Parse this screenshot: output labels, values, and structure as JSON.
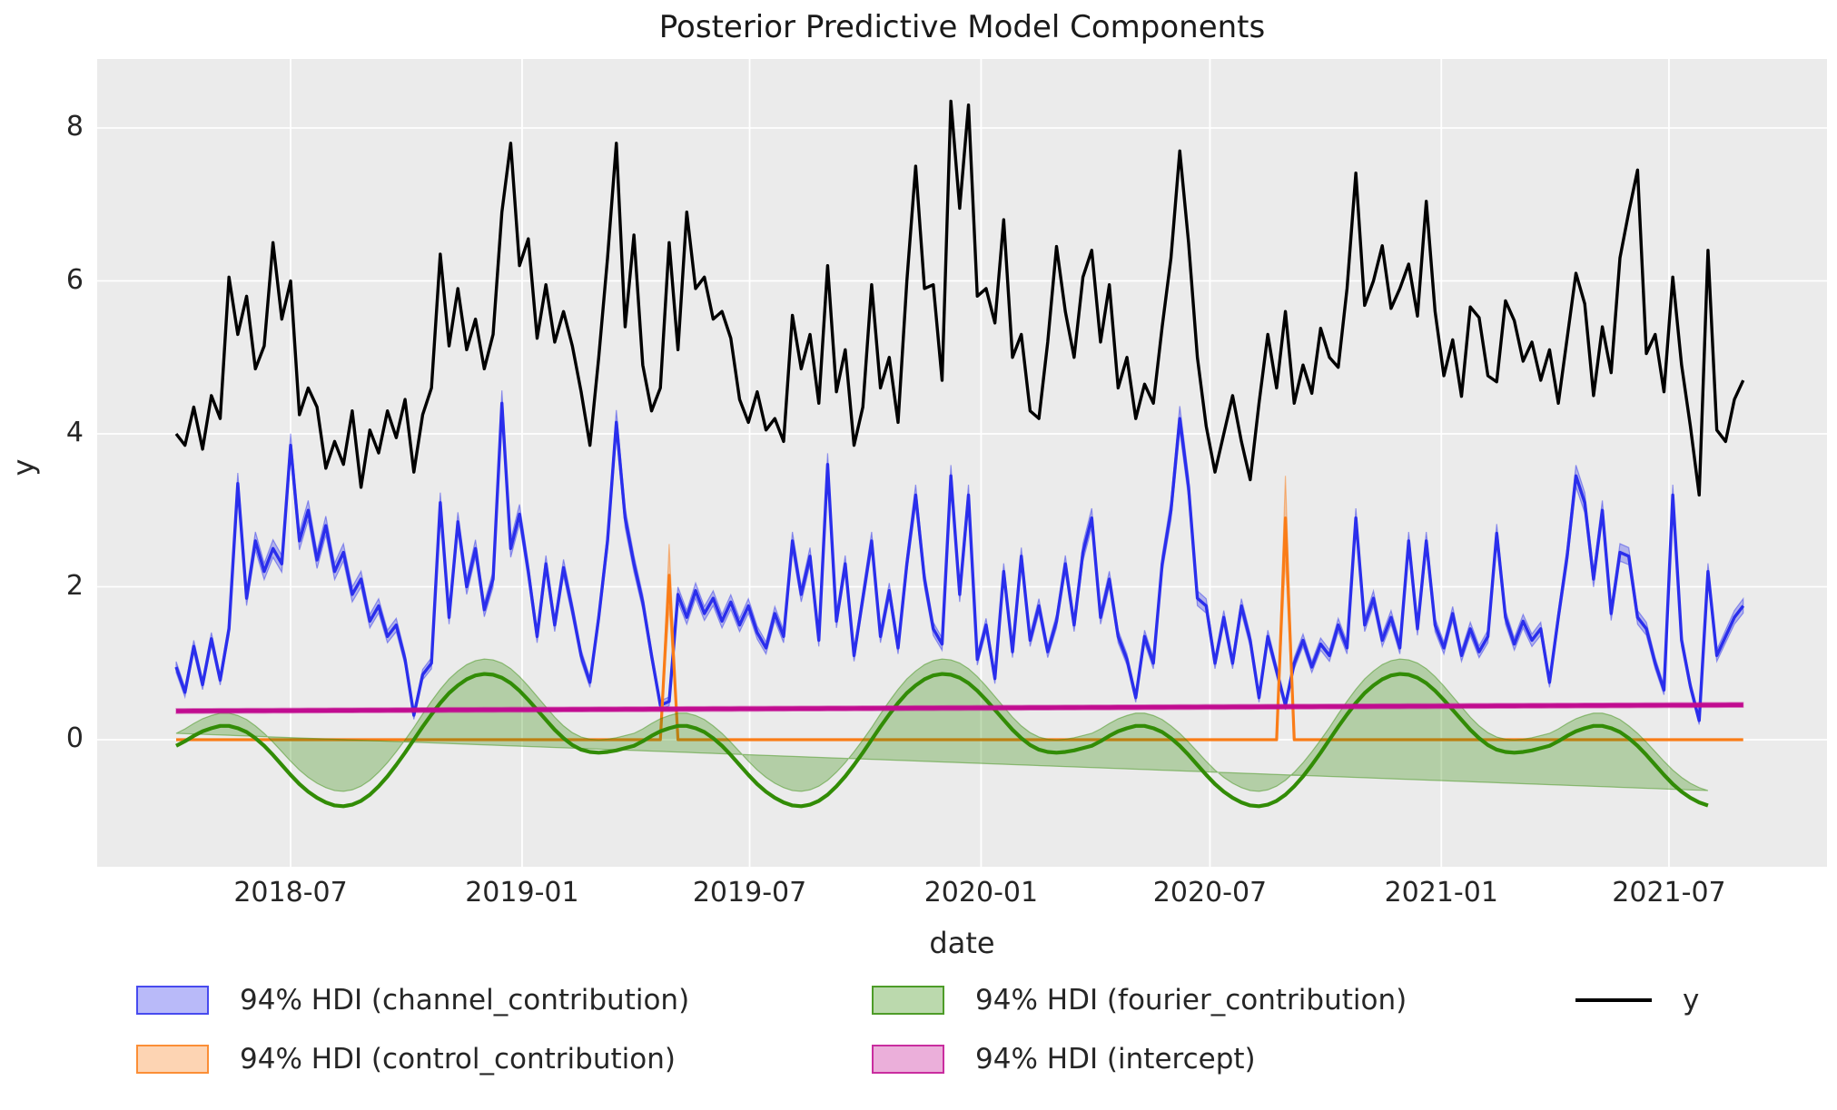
{
  "figure": {
    "title": "Posterior Predictive Model Components",
    "xlabel": "date",
    "ylabel": "y"
  },
  "axes": {
    "x_tick_labels": [
      "2018-07",
      "2019-01",
      "2019-07",
      "2020-01",
      "2020-07",
      "2021-01",
      "2021-07"
    ],
    "x_tick_weeks": [
      13.0,
      39.29,
      65.14,
      91.43,
      117.43,
      143.71,
      169.57
    ],
    "y_tick_labels": [
      "0",
      "2",
      "4",
      "6",
      "8"
    ],
    "y_tick_values": [
      0,
      2,
      4,
      6,
      8
    ],
    "background_color": "#ebebeb",
    "grid_color": "#ffffff"
  },
  "legend": {
    "items": [
      {
        "label": "94% HDI (channel_contribution)",
        "type": "patch",
        "color": "#2a2eec",
        "col": 0,
        "row": 0
      },
      {
        "label": "94% HDI (control_contribution)",
        "type": "patch",
        "color": "#fa7c17",
        "col": 0,
        "row": 1
      },
      {
        "label": "94% HDI (fourier_contribution)",
        "type": "patch",
        "color": "#328c06",
        "col": 1,
        "row": 0
      },
      {
        "label": "94% HDI (intercept)",
        "type": "patch",
        "color": "#c10c90",
        "col": 1,
        "row": 1
      },
      {
        "label": "y",
        "type": "line",
        "color": "#000000",
        "col": 2,
        "row": 0
      }
    ]
  },
  "chart_data": {
    "type": "line",
    "title": "Posterior Predictive Model Components",
    "xlabel": "date",
    "ylabel": "y",
    "x_start_date": "2018-04-01",
    "x_freq_days": 7,
    "n_points": 179,
    "xlim_weeks": [
      -9.0,
      187.5
    ],
    "ylim": [
      -1.66,
      8.9
    ],
    "grid": true,
    "legend_position": "below",
    "series": [
      {
        "name": "y",
        "color": "#000000",
        "kind": "line",
        "line_width": 3.4,
        "values": [
          4.0,
          3.85,
          4.35,
          3.8,
          4.5,
          4.2,
          6.05,
          5.3,
          5.8,
          4.85,
          5.15,
          6.5,
          5.5,
          6.0,
          4.25,
          4.6,
          4.35,
          3.55,
          3.9,
          3.6,
          4.3,
          3.3,
          4.05,
          3.75,
          4.3,
          3.95,
          4.45,
          3.5,
          4.25,
          4.6,
          6.35,
          5.15,
          5.9,
          5.1,
          5.5,
          4.85,
          5.3,
          6.9,
          7.8,
          6.2,
          6.55,
          5.25,
          5.95,
          5.2,
          5.6,
          5.15,
          4.55,
          3.85,
          5.0,
          6.3,
          7.8,
          5.4,
          6.6,
          4.9,
          4.3,
          4.6,
          6.5,
          5.1,
          6.9,
          5.9,
          6.05,
          5.5,
          5.6,
          5.25,
          4.45,
          4.15,
          4.55,
          4.05,
          4.2,
          3.9,
          5.55,
          4.85,
          5.3,
          4.4,
          6.2,
          4.55,
          5.1,
          3.85,
          4.35,
          5.95,
          4.6,
          5.0,
          4.15,
          6.0,
          7.5,
          5.9,
          5.95,
          4.7,
          8.35,
          6.95,
          8.3,
          5.8,
          5.9,
          5.45,
          6.8,
          5.0,
          5.3,
          4.3,
          4.2,
          5.2,
          6.45,
          5.6,
          5.0,
          6.05,
          6.4,
          5.2,
          5.95,
          4.6,
          5.0,
          4.2,
          4.65,
          4.4,
          5.4,
          6.3,
          7.7,
          6.5,
          5.0,
          4.1,
          3.5,
          4.0,
          4.5,
          3.9,
          3.4,
          4.4,
          5.3,
          4.6,
          5.6,
          4.4,
          4.9,
          4.53,
          5.38,
          5.0,
          4.87,
          5.9,
          7.41,
          5.68,
          6.0,
          6.46,
          5.64,
          5.9,
          6.22,
          5.54,
          7.04,
          5.6,
          4.76,
          5.23,
          4.49,
          5.66,
          5.52,
          4.76,
          4.68,
          5.74,
          5.48,
          4.95,
          5.2,
          4.7,
          5.1,
          4.4,
          5.25,
          6.1,
          5.7,
          4.5,
          5.4,
          4.8,
          6.3,
          6.9,
          7.45,
          5.05,
          5.3,
          4.55,
          6.05,
          4.9,
          4.1,
          3.2,
          6.4,
          4.05,
          3.9,
          4.45,
          4.7
        ]
      },
      {
        "name": "channel_contribution",
        "hdi_label": "94% HDI (channel_contribution)",
        "color": "#2a2eec",
        "kind": "line+band",
        "line_width": 3.4,
        "band_alpha": 0.3,
        "hdi_halfwidth": {
          "base": 0.045,
          "per_unit": 0.028
        },
        "values": [
          0.95,
          0.62,
          1.22,
          0.72,
          1.32,
          0.78,
          1.45,
          3.35,
          1.85,
          2.6,
          2.2,
          2.5,
          2.3,
          3.85,
          2.6,
          3.0,
          2.35,
          2.8,
          2.2,
          2.45,
          1.9,
          2.1,
          1.55,
          1.75,
          1.35,
          1.5,
          1.05,
          0.32,
          0.85,
          1.0,
          3.1,
          1.6,
          2.85,
          2.0,
          2.5,
          1.7,
          2.1,
          4.4,
          2.5,
          2.95,
          2.2,
          1.35,
          2.3,
          1.5,
          2.25,
          1.7,
          1.1,
          0.75,
          1.6,
          2.6,
          4.15,
          2.9,
          2.3,
          1.8,
          1.1,
          0.45,
          0.5,
          1.9,
          1.6,
          1.95,
          1.65,
          1.85,
          1.55,
          1.8,
          1.5,
          1.75,
          1.4,
          1.2,
          1.65,
          1.35,
          2.6,
          1.9,
          2.4,
          1.3,
          3.6,
          1.55,
          2.3,
          1.1,
          1.85,
          2.6,
          1.35,
          1.95,
          1.2,
          2.3,
          3.2,
          2.1,
          1.45,
          1.25,
          3.45,
          1.9,
          3.2,
          1.05,
          1.5,
          0.8,
          2.2,
          1.15,
          2.4,
          1.3,
          1.75,
          1.15,
          1.55,
          2.3,
          1.5,
          2.45,
          2.9,
          1.6,
          2.1,
          1.35,
          1.05,
          0.55,
          1.35,
          1.0,
          2.3,
          3.0,
          4.2,
          3.3,
          1.85,
          1.75,
          1.0,
          1.6,
          1.0,
          1.75,
          1.3,
          0.55,
          1.35,
          0.9,
          0.45,
          1.0,
          1.3,
          0.95,
          1.25,
          1.1,
          1.5,
          1.2,
          2.9,
          1.5,
          1.85,
          1.3,
          1.6,
          1.2,
          2.6,
          1.45,
          2.6,
          1.5,
          1.2,
          1.65,
          1.1,
          1.45,
          1.15,
          1.35,
          2.7,
          1.6,
          1.25,
          1.55,
          1.3,
          1.45,
          0.75,
          1.6,
          2.4,
          3.45,
          3.1,
          2.1,
          3.0,
          1.65,
          2.45,
          2.4,
          1.6,
          1.45,
          1.0,
          0.65,
          3.2,
          1.3,
          0.7,
          0.25,
          2.2,
          1.1,
          1.35,
          1.6,
          1.75
        ]
      },
      {
        "name": "control_contribution",
        "hdi_label": "94% HDI (control_contribution)",
        "color": "#fa7c17",
        "kind": "line+band",
        "line_width": 3.2,
        "band_alpha": 0.35,
        "hdi_halfwidth": {
          "base": 0.0,
          "per_unit": 0.19
        },
        "values_sparse": {
          "baseline": 0,
          "spikes": {
            "56": 2.15,
            "126": 2.9
          }
        }
      },
      {
        "name": "fourier_contribution",
        "hdi_label": "94% HDI (fourier_contribution)",
        "color": "#328c06",
        "kind": "line+band",
        "line_width": 4.2,
        "band_alpha": 0.3,
        "hdi_halfwidth": {
          "base": 0.16,
          "per_unit": 0.04
        },
        "values": [
          -0.08,
          -0.02,
          0.05,
          0.11,
          0.15,
          0.18,
          0.18,
          0.15,
          0.1,
          0.02,
          -0.08,
          -0.2,
          -0.33,
          -0.46,
          -0.58,
          -0.68,
          -0.76,
          -0.82,
          -0.86,
          -0.87,
          -0.85,
          -0.8,
          -0.72,
          -0.61,
          -0.48,
          -0.33,
          -0.17,
          0.0,
          0.17,
          0.33,
          0.48,
          0.61,
          0.71,
          0.79,
          0.84,
          0.86,
          0.85,
          0.81,
          0.74,
          0.64,
          0.52,
          0.39,
          0.26,
          0.13,
          0.02,
          -0.07,
          -0.13,
          -0.16,
          -0.17,
          -0.16,
          -0.14,
          -0.11,
          -0.08,
          -0.02,
          0.05,
          0.11,
          0.15,
          0.18,
          0.18,
          0.15,
          0.1,
          0.02,
          -0.08,
          -0.2,
          -0.33,
          -0.46,
          -0.58,
          -0.68,
          -0.76,
          -0.82,
          -0.86,
          -0.87,
          -0.85,
          -0.8,
          -0.72,
          -0.61,
          -0.48,
          -0.33,
          -0.17,
          0.0,
          0.17,
          0.33,
          0.48,
          0.61,
          0.71,
          0.79,
          0.84,
          0.86,
          0.85,
          0.81,
          0.74,
          0.64,
          0.52,
          0.39,
          0.26,
          0.13,
          0.02,
          -0.07,
          -0.13,
          -0.16,
          -0.17,
          -0.16,
          -0.14,
          -0.11,
          -0.08,
          -0.02,
          0.05,
          0.11,
          0.15,
          0.18,
          0.18,
          0.15,
          0.1,
          0.02,
          -0.08,
          -0.2,
          -0.33,
          -0.46,
          -0.58,
          -0.68,
          -0.76,
          -0.82,
          -0.86,
          -0.87,
          -0.85,
          -0.8,
          -0.72,
          -0.61,
          -0.48,
          -0.33,
          -0.17,
          0.0,
          0.17,
          0.33,
          0.48,
          0.61,
          0.71,
          0.79,
          0.84,
          0.86,
          0.85,
          0.81,
          0.74,
          0.64,
          0.52,
          0.39,
          0.26,
          0.13,
          0.02,
          -0.07,
          -0.13,
          -0.16,
          -0.17,
          -0.16,
          -0.14,
          -0.11,
          -0.08,
          -0.02,
          0.05,
          0.11,
          0.15,
          0.18,
          0.18,
          0.15,
          0.1,
          0.02,
          -0.08,
          -0.2,
          -0.33,
          -0.46,
          -0.58,
          -0.68,
          -0.76,
          -0.82,
          -0.86
        ]
      },
      {
        "name": "intercept",
        "hdi_label": "94% HDI (intercept)",
        "color": "#c10c90",
        "kind": "line+band",
        "line_width": 4.6,
        "band_alpha": 0.3,
        "hdi_halfwidth": {
          "base": 0.032,
          "per_unit": 0
        },
        "values_linear": {
          "start": 0.375,
          "end": 0.455
        }
      }
    ]
  }
}
